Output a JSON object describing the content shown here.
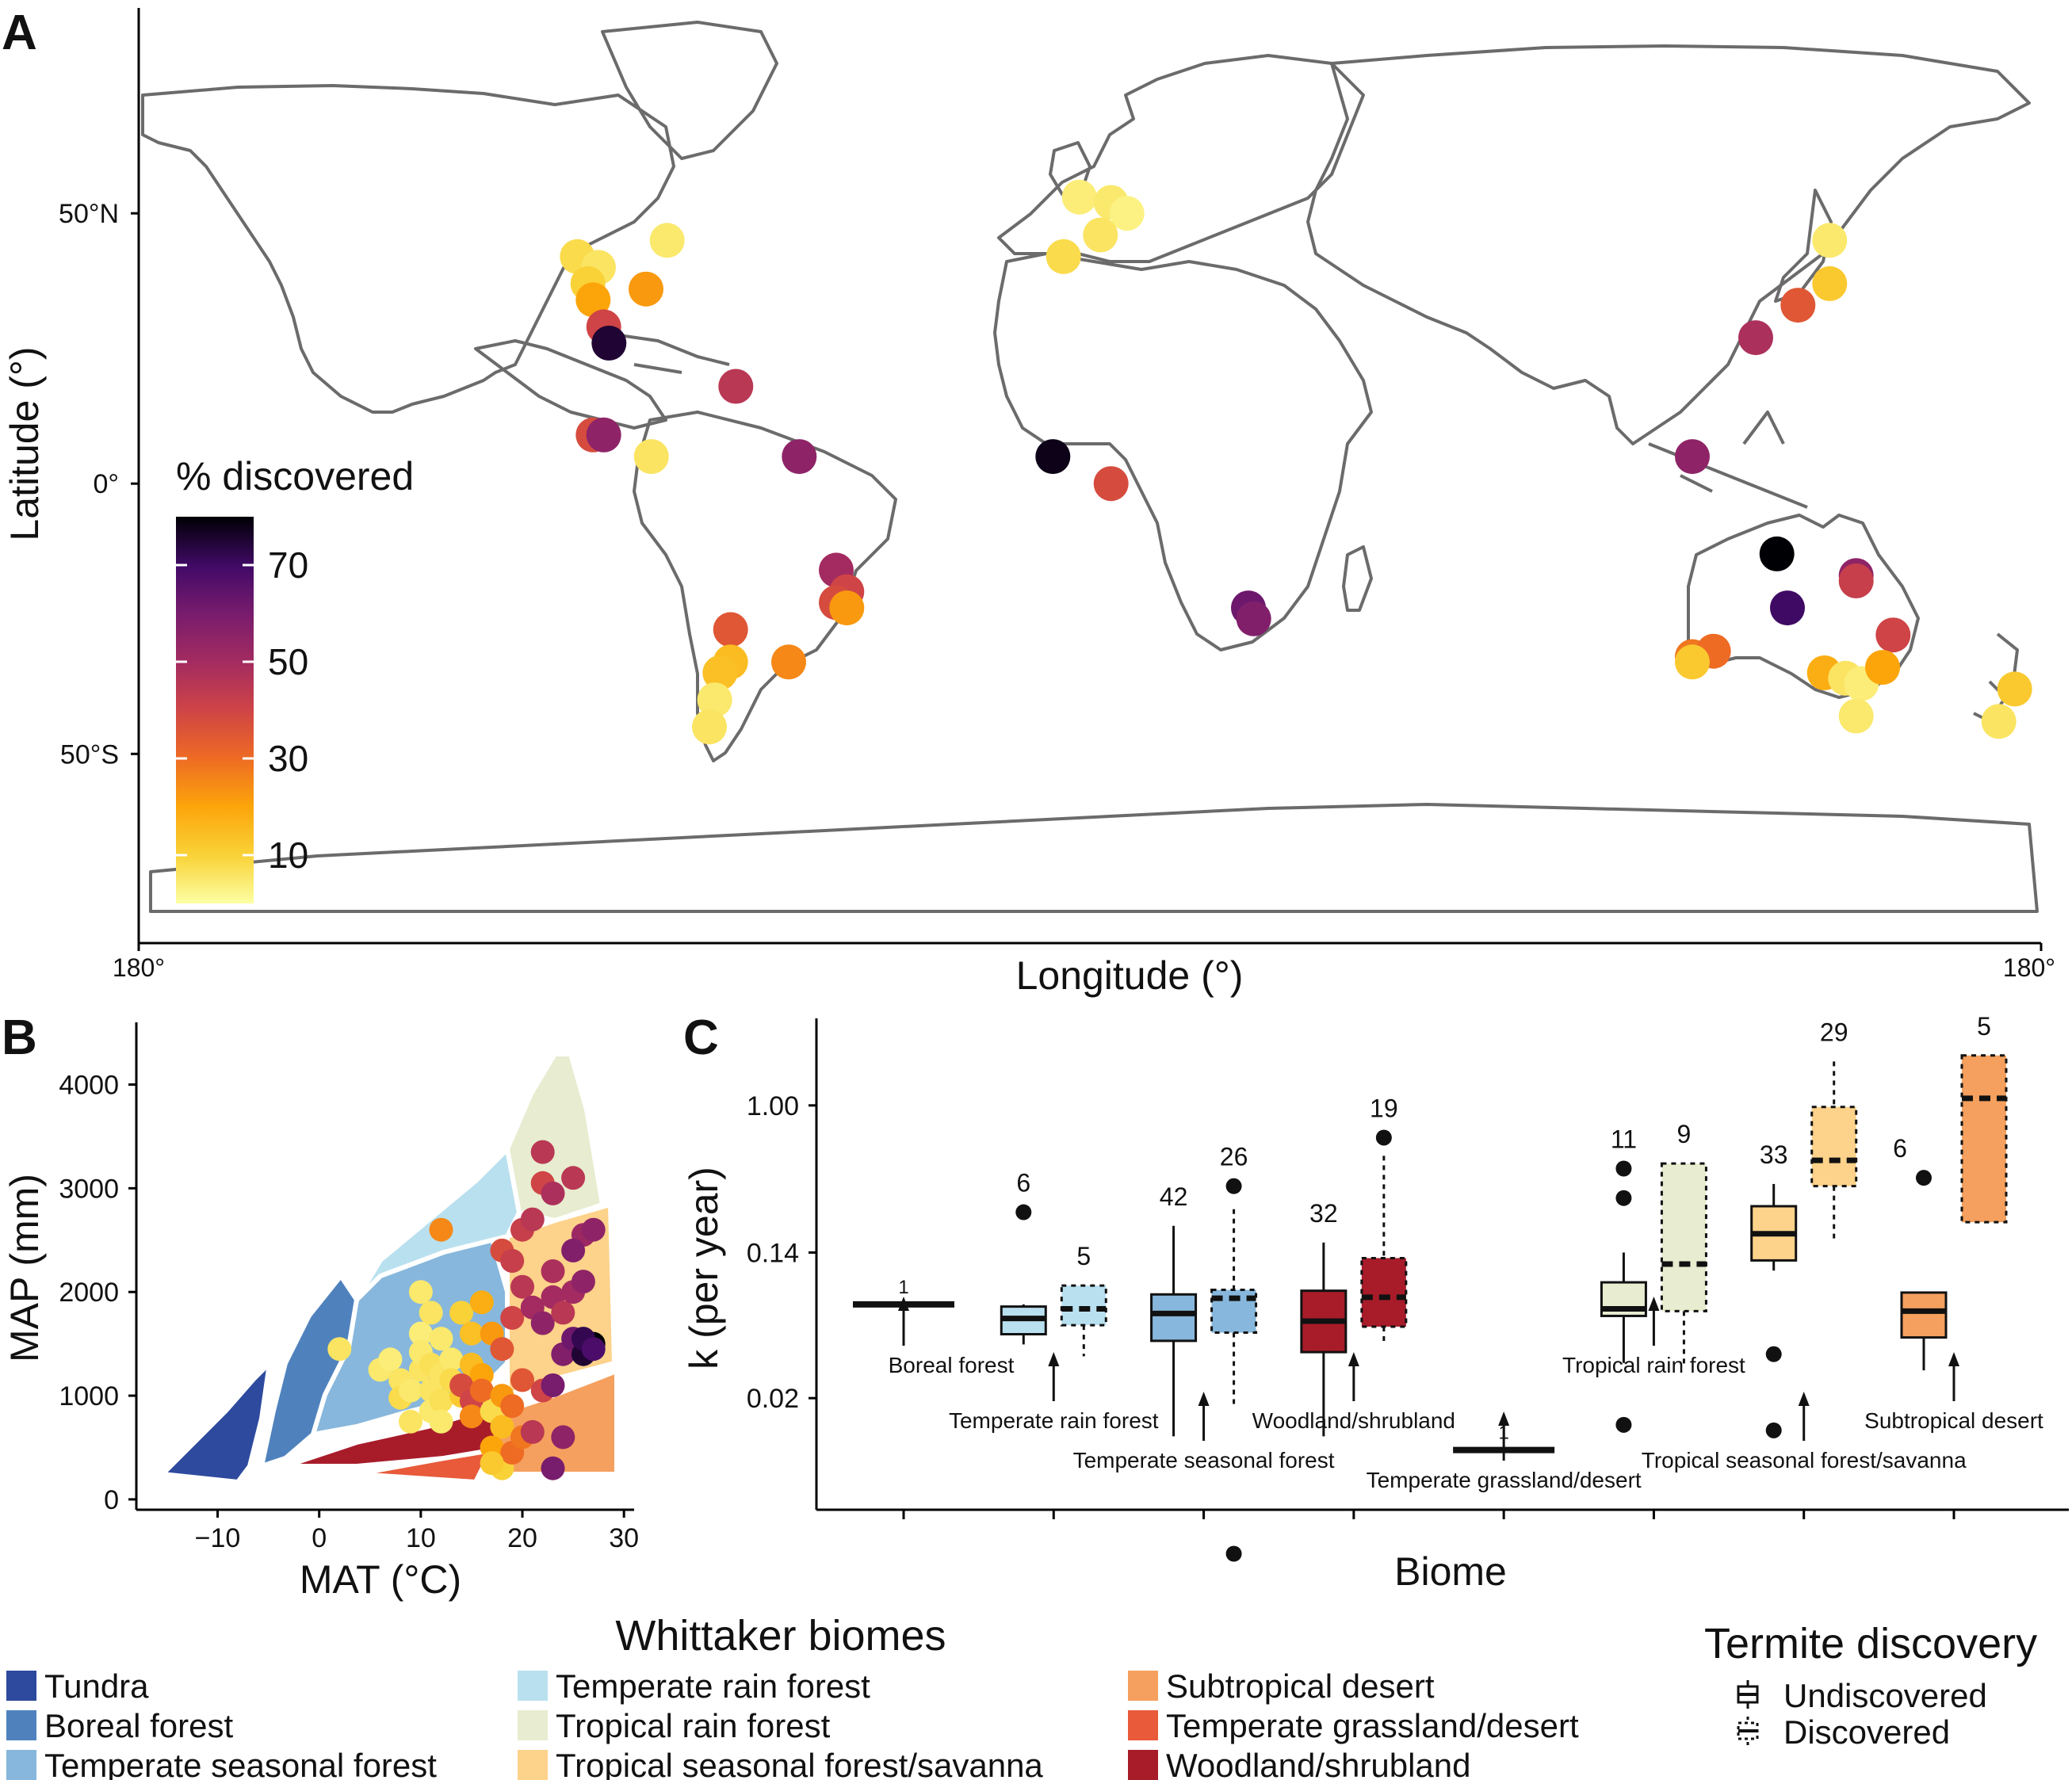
{
  "panel_labels": {
    "a": "A",
    "b": "B",
    "c": "C"
  },
  "panel_a": {
    "ylabel": "Latitude (°)",
    "xlabel": "Longitude (°)",
    "y_ticks": [
      {
        "label": "50°N",
        "lat": 50
      },
      {
        "label": "0°",
        "lat": 0
      },
      {
        "label": "50°S",
        "lat": -50
      }
    ],
    "x_ticks": [
      {
        "label": "180°",
        "lon": -180
      },
      {
        "label": "180°",
        "lon": 180
      }
    ],
    "colorbar_title": "% discovered",
    "colorbar_ticks": [
      70,
      50,
      30,
      10
    ],
    "colorbar_range": [
      0,
      80
    ]
  },
  "panel_b": {
    "ylabel": "MAP (mm)",
    "xlabel": "MAT (°C)",
    "x_ticks": [
      -10,
      0,
      10,
      20,
      30
    ],
    "y_ticks": [
      0,
      1000,
      2000,
      3000,
      4000
    ],
    "xlim": [
      -18,
      31
    ],
    "ylim": [
      -100,
      4600
    ]
  },
  "panel_c": {
    "ylabel": "k (per year)",
    "xlabel": "Biome",
    "y_ticks": [
      "1.00",
      "0.14",
      "0.02"
    ],
    "y_tick_values": [
      1.0,
      0.14,
      0.02
    ],
    "ylim": [
      0.0045,
      3.2
    ]
  },
  "legend_biomes": {
    "title": "Whittaker biomes",
    "items": [
      {
        "label": "Tundra",
        "color": "#2e4a9e"
      },
      {
        "label": "Boreal forest",
        "color": "#4f82bd"
      },
      {
        "label": "Temperate seasonal forest",
        "color": "#87b7dc"
      },
      {
        "label": "Temperate rain forest",
        "color": "#b9e0ef"
      },
      {
        "label": "Tropical rain forest",
        "color": "#e8ecd0"
      },
      {
        "label": "Tropical seasonal forest/savanna",
        "color": "#fdd28a"
      },
      {
        "label": "Subtropical desert",
        "color": "#f5a05e"
      },
      {
        "label": "Temperate grassland/desert",
        "color": "#e85a3a"
      },
      {
        "label": "Woodland/shrubland",
        "color": "#a81c2a"
      }
    ]
  },
  "legend_termite": {
    "title": "Termite discovery",
    "items": [
      {
        "label": "Undiscovered",
        "style": "solid"
      },
      {
        "label": "Discovered",
        "style": "dotted"
      }
    ]
  },
  "chart_data": [
    {
      "type": "scatter",
      "panel": "A",
      "xlabel": "Longitude (°)",
      "ylabel": "Latitude (°)",
      "xlim": [
        -180,
        180
      ],
      "ylim": [
        -85,
        88
      ],
      "color_scale": "% discovered",
      "points": [
        {
          "lon": -97,
          "lat": 42,
          "v": 8
        },
        {
          "lon": -93,
          "lat": 40,
          "v": 6
        },
        {
          "lon": -95,
          "lat": 37,
          "v": 10
        },
        {
          "lon": -94,
          "lat": 34,
          "v": 20
        },
        {
          "lon": -84,
          "lat": 36,
          "v": 22
        },
        {
          "lon": -80,
          "lat": 45,
          "v": 5
        },
        {
          "lon": -92,
          "lat": 29,
          "v": 40
        },
        {
          "lon": -91,
          "lat": 26,
          "v": 75
        },
        {
          "lon": -67,
          "lat": 18,
          "v": 45
        },
        {
          "lon": -94,
          "lat": 9,
          "v": 38
        },
        {
          "lon": -92,
          "lat": 9,
          "v": 55
        },
        {
          "lon": -83,
          "lat": 5,
          "v": 6
        },
        {
          "lon": -55,
          "lat": 5,
          "v": 55
        },
        {
          "lon": -48,
          "lat": -16,
          "v": 50
        },
        {
          "lon": -46,
          "lat": -20,
          "v": 40
        },
        {
          "lon": -48,
          "lat": -22,
          "v": 38
        },
        {
          "lon": -46,
          "lat": -23,
          "v": 22
        },
        {
          "lon": -68,
          "lat": -27,
          "v": 35
        },
        {
          "lon": -68,
          "lat": -33,
          "v": 15
        },
        {
          "lon": -70,
          "lat": -35,
          "v": 14
        },
        {
          "lon": -57,
          "lat": -33,
          "v": 25
        },
        {
          "lon": -71,
          "lat": -40,
          "v": 5
        },
        {
          "lon": -72,
          "lat": -45,
          "v": 6
        },
        {
          "lon": -2,
          "lat": 53,
          "v": 4
        },
        {
          "lon": 4,
          "lat": 52,
          "v": 5
        },
        {
          "lon": 7,
          "lat": 50,
          "v": 3
        },
        {
          "lon": 2,
          "lat": 46,
          "v": 6
        },
        {
          "lon": -5,
          "lat": 42,
          "v": 8
        },
        {
          "lon": -7,
          "lat": 5,
          "v": 78
        },
        {
          "lon": 4,
          "lat": 0,
          "v": 38
        },
        {
          "lon": 30,
          "lat": -23,
          "v": 62
        },
        {
          "lon": 31,
          "lat": -25,
          "v": 58
        },
        {
          "lon": 140,
          "lat": 45,
          "v": 5
        },
        {
          "lon": 140,
          "lat": 37,
          "v": 12
        },
        {
          "lon": 134,
          "lat": 33,
          "v": 35
        },
        {
          "lon": 126,
          "lat": 27,
          "v": 48
        },
        {
          "lon": 114,
          "lat": 5,
          "v": 55
        },
        {
          "lon": 130,
          "lat": -13,
          "v": 80
        },
        {
          "lon": 132,
          "lat": -23,
          "v": 70
        },
        {
          "lon": 145,
          "lat": -17,
          "v": 55
        },
        {
          "lon": 145,
          "lat": -18,
          "v": 42
        },
        {
          "lon": 152,
          "lat": -28,
          "v": 40
        },
        {
          "lon": 114,
          "lat": -32,
          "v": 28
        },
        {
          "lon": 118,
          "lat": -31,
          "v": 30
        },
        {
          "lon": 114,
          "lat": -33,
          "v": 12
        },
        {
          "lon": 139,
          "lat": -35,
          "v": 18
        },
        {
          "lon": 143,
          "lat": -36,
          "v": 6
        },
        {
          "lon": 146,
          "lat": -37,
          "v": 4
        },
        {
          "lon": 150,
          "lat": -34,
          "v": 20
        },
        {
          "lon": 145,
          "lat": -43,
          "v": 5
        },
        {
          "lon": 175,
          "lat": -38,
          "v": 12
        },
        {
          "lon": 172,
          "lat": -44,
          "v": 6
        }
      ]
    },
    {
      "type": "scatter",
      "panel": "B",
      "xlabel": "MAT (°C)",
      "ylabel": "MAP (mm)",
      "xlim": [
        -18,
        31
      ],
      "ylim": [
        -100,
        4600
      ],
      "points": [
        {
          "x": 2,
          "y": 1450,
          "v": 6
        },
        {
          "x": 6,
          "y": 1250,
          "v": 5
        },
        {
          "x": 7,
          "y": 1350,
          "v": 4
        },
        {
          "x": 8,
          "y": 1150,
          "v": 6
        },
        {
          "x": 8,
          "y": 980,
          "v": 8
        },
        {
          "x": 9,
          "y": 1050,
          "v": 5
        },
        {
          "x": 10,
          "y": 1250,
          "v": 6
        },
        {
          "x": 10,
          "y": 1600,
          "v": 4
        },
        {
          "x": 10,
          "y": 1420,
          "v": 5
        },
        {
          "x": 11,
          "y": 1300,
          "v": 7
        },
        {
          "x": 11,
          "y": 1050,
          "v": 6
        },
        {
          "x": 11,
          "y": 850,
          "v": 5
        },
        {
          "x": 12,
          "y": 1550,
          "v": 5
        },
        {
          "x": 12,
          "y": 1200,
          "v": 6
        },
        {
          "x": 12,
          "y": 950,
          "v": 7
        },
        {
          "x": 13,
          "y": 1350,
          "v": 5
        },
        {
          "x": 13,
          "y": 1150,
          "v": 8
        },
        {
          "x": 14,
          "y": 1000,
          "v": 12
        },
        {
          "x": 9,
          "y": 750,
          "v": 6
        },
        {
          "x": 12,
          "y": 750,
          "v": 5
        },
        {
          "x": 10,
          "y": 2000,
          "v": 5
        },
        {
          "x": 11,
          "y": 1800,
          "v": 6
        },
        {
          "x": 14,
          "y": 1800,
          "v": 10
        },
        {
          "x": 15,
          "y": 1600,
          "v": 14
        },
        {
          "x": 15,
          "y": 1300,
          "v": 15
        },
        {
          "x": 16,
          "y": 1200,
          "v": 20
        },
        {
          "x": 16,
          "y": 1900,
          "v": 18
        },
        {
          "x": 17,
          "y": 1600,
          "v": 22
        },
        {
          "x": 14,
          "y": 1100,
          "v": 38
        },
        {
          "x": 15,
          "y": 950,
          "v": 40
        },
        {
          "x": 16,
          "y": 1050,
          "v": 30
        },
        {
          "x": 15,
          "y": 800,
          "v": 25
        },
        {
          "x": 17,
          "y": 850,
          "v": 8
        },
        {
          "x": 18,
          "y": 700,
          "v": 15
        },
        {
          "x": 18,
          "y": 1000,
          "v": 22
        },
        {
          "x": 19,
          "y": 900,
          "v": 30
        },
        {
          "x": 17,
          "y": 500,
          "v": 20
        },
        {
          "x": 18,
          "y": 300,
          "v": 10
        },
        {
          "x": 19,
          "y": 450,
          "v": 30
        },
        {
          "x": 17,
          "y": 350,
          "v": 12
        },
        {
          "x": 20,
          "y": 1150,
          "v": 35
        },
        {
          "x": 20,
          "y": 600,
          "v": 28
        },
        {
          "x": 21,
          "y": 650,
          "v": 45
        },
        {
          "x": 22,
          "y": 1050,
          "v": 40
        },
        {
          "x": 18,
          "y": 1450,
          "v": 35
        },
        {
          "x": 19,
          "y": 1750,
          "v": 40
        },
        {
          "x": 20,
          "y": 2050,
          "v": 45
        },
        {
          "x": 21,
          "y": 1850,
          "v": 50
        },
        {
          "x": 22,
          "y": 1700,
          "v": 55
        },
        {
          "x": 23,
          "y": 1950,
          "v": 50
        },
        {
          "x": 24,
          "y": 1400,
          "v": 58
        },
        {
          "x": 25,
          "y": 1550,
          "v": 62
        },
        {
          "x": 26,
          "y": 1400,
          "v": 75
        },
        {
          "x": 27,
          "y": 1500,
          "v": 80
        },
        {
          "x": 26,
          "y": 1550,
          "v": 72
        },
        {
          "x": 27,
          "y": 1450,
          "v": 68
        },
        {
          "x": 24,
          "y": 1800,
          "v": 45
        },
        {
          "x": 25,
          "y": 2000,
          "v": 50
        },
        {
          "x": 26,
          "y": 2100,
          "v": 55
        },
        {
          "x": 23,
          "y": 2200,
          "v": 48
        },
        {
          "x": 18,
          "y": 2400,
          "v": 38
        },
        {
          "x": 19,
          "y": 2300,
          "v": 42
        },
        {
          "x": 20,
          "y": 2600,
          "v": 42
        },
        {
          "x": 21,
          "y": 2700,
          "v": 45
        },
        {
          "x": 22,
          "y": 3050,
          "v": 40
        },
        {
          "x": 23,
          "y": 2950,
          "v": 48
        },
        {
          "x": 22,
          "y": 3350,
          "v": 45
        },
        {
          "x": 25,
          "y": 3100,
          "v": 45
        },
        {
          "x": 26,
          "y": 2550,
          "v": 52
        },
        {
          "x": 27,
          "y": 2600,
          "v": 55
        },
        {
          "x": 25,
          "y": 2400,
          "v": 58
        },
        {
          "x": 12,
          "y": 2600,
          "v": 25
        },
        {
          "x": 24,
          "y": 600,
          "v": 55
        },
        {
          "x": 23,
          "y": 300,
          "v": 60
        },
        {
          "x": 23,
          "y": 1100,
          "v": 60
        }
      ]
    },
    {
      "type": "box",
      "panel": "C",
      "xlabel": "Biome",
      "ylabel": "k (per year)",
      "y_scale": "log",
      "ylim": [
        0.0045,
        3.2
      ],
      "groups": [
        {
          "biome": "Boreal forest",
          "discovery": "Undiscovered",
          "n": 1,
          "min": 0.07,
          "q1": 0.07,
          "median": 0.07,
          "q3": 0.07,
          "max": 0.07,
          "outliers": []
        },
        {
          "biome": "Temperate rain forest",
          "discovery": "Undiscovered",
          "n": 6,
          "min": 0.041,
          "q1": 0.047,
          "median": 0.058,
          "q3": 0.068,
          "max": 0.07,
          "outliers": [
            0.24
          ]
        },
        {
          "biome": "Temperate rain forest",
          "discovery": "Discovered",
          "n": 5,
          "min": 0.035,
          "q1": 0.053,
          "median": 0.066,
          "q3": 0.09,
          "max": 0.09,
          "outliers": []
        },
        {
          "biome": "Temperate seasonal forest",
          "discovery": "Undiscovered",
          "n": 42,
          "min": 0.012,
          "q1": 0.043,
          "median": 0.062,
          "q3": 0.08,
          "max": 0.2,
          "outliers": []
        },
        {
          "biome": "Temperate seasonal forest",
          "discovery": "Discovered",
          "n": 26,
          "min": 0.018,
          "q1": 0.048,
          "median": 0.076,
          "q3": 0.085,
          "max": 0.25,
          "outliers": [
            0.34,
            0.0025
          ]
        },
        {
          "biome": "Woodland/shrubland",
          "discovery": "Undiscovered",
          "n": 32,
          "min": 0.012,
          "q1": 0.037,
          "median": 0.056,
          "q3": 0.084,
          "max": 0.16,
          "outliers": []
        },
        {
          "biome": "Woodland/shrubland",
          "discovery": "Discovered",
          "n": 19,
          "min": 0.042,
          "q1": 0.052,
          "median": 0.077,
          "q3": 0.13,
          "max": 0.51,
          "outliers": [
            0.65
          ]
        },
        {
          "biome": "Temperate grassland/desert",
          "discovery": "Undiscovered",
          "n": 1,
          "min": 0.01,
          "q1": 0.01,
          "median": 0.01,
          "q3": 0.01,
          "max": 0.01,
          "outliers": []
        },
        {
          "biome": "Tropical rain forest",
          "discovery": "Undiscovered",
          "n": 11,
          "min": 0.032,
          "q1": 0.06,
          "median": 0.066,
          "q3": 0.094,
          "max": 0.14,
          "outliers": [
            0.43,
            0.29,
            0.014
          ]
        },
        {
          "biome": "Tropical rain forest",
          "discovery": "Discovered",
          "n": 9,
          "min": 0.03,
          "q1": 0.064,
          "median": 0.12,
          "q3": 0.46,
          "max": 0.46,
          "outliers": []
        },
        {
          "biome": "Tropical seasonal forest/savanna",
          "discovery": "Undiscovered",
          "n": 33,
          "min": 0.11,
          "q1": 0.126,
          "median": 0.18,
          "q3": 0.26,
          "max": 0.35,
          "outliers": [
            0.036,
            0.013
          ]
        },
        {
          "biome": "Tropical seasonal forest/savanna",
          "discovery": "Discovered",
          "n": 29,
          "min": 0.16,
          "q1": 0.34,
          "median": 0.48,
          "q3": 0.98,
          "max": 1.8,
          "outliers": []
        },
        {
          "biome": "Subtropical desert",
          "discovery": "Undiscovered",
          "n": 6,
          "min": 0.029,
          "q1": 0.045,
          "median": 0.064,
          "q3": 0.082,
          "max": 0.082,
          "outliers": [
            0.38
          ]
        },
        {
          "biome": "Subtropical desert",
          "discovery": "Discovered",
          "n": 5,
          "min": 0.21,
          "q1": 0.21,
          "median": 1.1,
          "q3": 1.95,
          "max": 1.95,
          "outliers": []
        }
      ],
      "biome_labels": [
        {
          "label": "Boreal forest",
          "row": 0
        },
        {
          "label": "Temperate rain forest",
          "row": 1
        },
        {
          "label": "Temperate seasonal forest",
          "row": 2
        },
        {
          "label": "Woodland/shrubland",
          "row": 1
        },
        {
          "label": "Temperate grassland/desert",
          "row": 3
        },
        {
          "label": "Tropical rain forest",
          "row": 0
        },
        {
          "label": "Tropical seasonal forest/savanna",
          "row": 2
        },
        {
          "label": "Subtropical desert",
          "row": 1
        }
      ]
    }
  ]
}
